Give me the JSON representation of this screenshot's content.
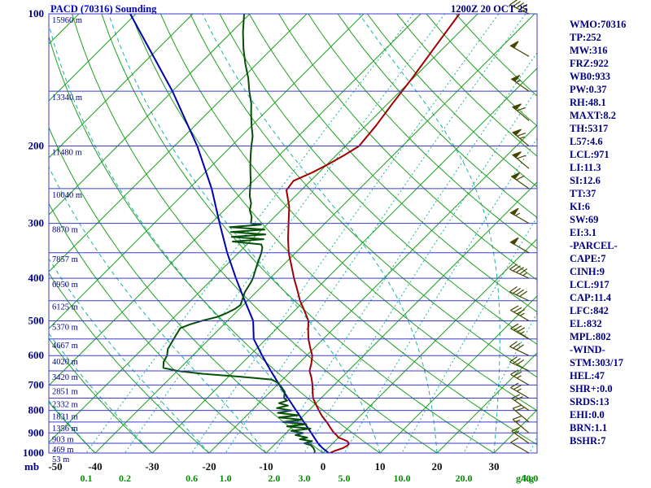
{
  "header": {
    "title": "PACD (70316) Sounding",
    "datetime": "1200Z 20 OCT 25"
  },
  "axes": {
    "pressure_unit": "mb",
    "mixing_unit": "g/kg",
    "pressure_ticks": [
      100,
      200,
      300,
      400,
      500,
      600,
      700,
      800,
      900,
      1000
    ],
    "temp_ticks": [
      -50,
      -40,
      -30,
      -20,
      -10,
      0,
      10,
      20,
      30
    ],
    "mixing_ratio_ticks": [
      0.1,
      0.2,
      0.6,
      1.0,
      2.0,
      3.0,
      5.0,
      10.0,
      20.0,
      40.0
    ]
  },
  "heights": [
    [
      100,
      "15960 m"
    ],
    [
      150,
      "13340 m"
    ],
    [
      200,
      "11480 m"
    ],
    [
      250,
      "10040 m"
    ],
    [
      300,
      "8870 m"
    ],
    [
      350,
      "7857 m"
    ],
    [
      400,
      "6950 m"
    ],
    [
      450,
      "6125 m"
    ],
    [
      500,
      "5370 m"
    ],
    [
      550,
      "4667 m"
    ],
    [
      600,
      "4020 m"
    ],
    [
      650,
      "3420 m"
    ],
    [
      700,
      "2851 m"
    ],
    [
      750,
      "2332 m"
    ],
    [
      800,
      "1831 m"
    ],
    [
      850,
      "1356 m"
    ],
    [
      900,
      "903 m"
    ],
    [
      950,
      "469 m"
    ],
    [
      1000,
      "53 m"
    ]
  ],
  "indices": [
    "WMO:70316",
    "TP:252",
    "MW:316",
    "FRZ:922",
    "WB0:933",
    "PW:0.37",
    "RH:48.1",
    "MAXT:8.2",
    "TH:5317",
    "L57:4.6",
    "LCL:971",
    "LI:11.3",
    "SI:12.6",
    "TT:37",
    "KI:6",
    "SW:69",
    "EI:3.1",
    "-PARCEL-",
    "CAPE:7",
    "CINH:9",
    "LCL:917",
    "CAP:11.4",
    "LFC:842",
    "EL:832",
    "MPL:802",
    "-WIND-",
    "STM:303/17",
    "HEL:47",
    "SHR+:0.0",
    "SRDS:13",
    "EHI:0.0",
    "BRN:1.1",
    "BSHR:7"
  ],
  "colors": {
    "pressure_line": "#3b3bd0",
    "isotherm": "#1fa01f",
    "mixing": "#19b3a6",
    "temperature": "#a00000",
    "dewpoint": "#064f06",
    "parcel": "#0000b0",
    "wind": "#454500",
    "label_navy": "#000085",
    "label_black": "#111111",
    "label_green": "#0a8a0a"
  },
  "chart_data": {
    "type": "skewt-log-p",
    "title": "PACD (70316) Sounding",
    "valid": "1200Z 20 OCT 25",
    "pressure_axis": {
      "unit": "mb",
      "range": [
        100,
        1000
      ],
      "scale": "log",
      "line_step_mb": 50
    },
    "temperature_axis": {
      "unit": "C",
      "skew_deg": 45,
      "isotherm_step_c": 10
    },
    "dry_adiabat_step_k": 10,
    "moist_adiabat_step_k": 10,
    "temperature": {
      "name": "temperature",
      "points": [
        [
          1000,
          1.2
        ],
        [
          990,
          1.6
        ],
        [
          975,
          2.6
        ],
        [
          960,
          3.0
        ],
        [
          950,
          2.8
        ],
        [
          940,
          2.2
        ],
        [
          930,
          1.0
        ],
        [
          922,
          0
        ],
        [
          910,
          -0.8
        ],
        [
          900,
          -1.6
        ],
        [
          875,
          -3.2
        ],
        [
          850,
          -4.8
        ],
        [
          825,
          -6.6
        ],
        [
          800,
          -8.2
        ],
        [
          775,
          -9.8
        ],
        [
          750,
          -11.4
        ],
        [
          725,
          -12.6
        ],
        [
          700,
          -13.8
        ],
        [
          675,
          -15.2
        ],
        [
          650,
          -16.8
        ],
        [
          625,
          -17.8
        ],
        [
          600,
          -19.0
        ],
        [
          575,
          -20.8
        ],
        [
          550,
          -22.6
        ],
        [
          525,
          -24.2
        ],
        [
          500,
          -25.8
        ],
        [
          475,
          -28.2
        ],
        [
          450,
          -30.8
        ],
        [
          425,
          -33.2
        ],
        [
          400,
          -35.8
        ],
        [
          375,
          -38.4
        ],
        [
          350,
          -41.2
        ],
        [
          325,
          -43.8
        ],
        [
          300,
          -46.4
        ],
        [
          275,
          -49.2
        ],
        [
          252,
          -52.6
        ],
        [
          240,
          -53.0
        ],
        [
          230,
          -51.2
        ],
        [
          220,
          -49.8
        ],
        [
          210,
          -48.6
        ],
        [
          200,
          -47.6
        ],
        [
          180,
          -48.2
        ],
        [
          160,
          -49.2
        ],
        [
          140,
          -50.2
        ],
        [
          120,
          -51.6
        ],
        [
          100,
          -53.2
        ]
      ]
    },
    "dewpoint": {
      "name": "dewpoint",
      "points": [
        [
          1000,
          -1.5
        ],
        [
          990,
          -1.8
        ],
        [
          975,
          -2.5
        ],
        [
          960,
          -3.5
        ],
        [
          950,
          -5.0
        ],
        [
          940,
          -4.0
        ],
        [
          930,
          -6.5
        ],
        [
          922,
          -5.5
        ],
        [
          910,
          -8.0
        ],
        [
          900,
          -7.0
        ],
        [
          890,
          -9.5
        ],
        [
          880,
          -6.5
        ],
        [
          870,
          -11.0
        ],
        [
          860,
          -8.0
        ],
        [
          850,
          -12.5
        ],
        [
          840,
          -9.5
        ],
        [
          830,
          -14.0
        ],
        [
          820,
          -11.0
        ],
        [
          810,
          -15.0
        ],
        [
          800,
          -13.0
        ],
        [
          790,
          -16.0
        ],
        [
          780,
          -14.5
        ],
        [
          770,
          -16.5
        ],
        [
          760,
          -15.5
        ],
        [
          750,
          -16.5
        ],
        [
          725,
          -17.5
        ],
        [
          700,
          -19.5
        ],
        [
          690,
          -20.5
        ],
        [
          680,
          -22.0
        ],
        [
          670,
          -28.0
        ],
        [
          660,
          -35.0
        ],
        [
          650,
          -40.0
        ],
        [
          640,
          -43.0
        ],
        [
          620,
          -44.0
        ],
        [
          600,
          -44.5
        ],
        [
          580,
          -45.5
        ],
        [
          560,
          -46.0
        ],
        [
          540,
          -46.5
        ],
        [
          520,
          -47.0
        ],
        [
          510,
          -46.0
        ],
        [
          500,
          -44.5
        ],
        [
          490,
          -42.5
        ],
        [
          480,
          -41.5
        ],
        [
          470,
          -40.8
        ],
        [
          460,
          -40.5
        ],
        [
          450,
          -41.0
        ],
        [
          440,
          -41.5
        ],
        [
          430,
          -42.0
        ],
        [
          420,
          -42.3
        ],
        [
          410,
          -42.6
        ],
        [
          400,
          -43.0
        ],
        [
          390,
          -43.6
        ],
        [
          380,
          -44.2
        ],
        [
          370,
          -44.8
        ],
        [
          360,
          -45.4
        ],
        [
          350,
          -46.0
        ],
        [
          340,
          -46.8
        ],
        [
          335,
          -47.5
        ],
        [
          330,
          -53.0
        ],
        [
          326,
          -48.0
        ],
        [
          322,
          -54.0
        ],
        [
          318,
          -48.5
        ],
        [
          314,
          -55.0
        ],
        [
          310,
          -49.5
        ],
        [
          306,
          -56.0
        ],
        [
          302,
          -51.0
        ],
        [
          300,
          -53.0
        ],
        [
          290,
          -54.0
        ],
        [
          280,
          -55.5
        ],
        [
          270,
          -56.5
        ],
        [
          260,
          -58.0
        ],
        [
          252,
          -59.0
        ],
        [
          240,
          -60.5
        ],
        [
          230,
          -62.0
        ],
        [
          220,
          -63.5
        ],
        [
          210,
          -65.0
        ],
        [
          200,
          -66.5
        ],
        [
          190,
          -68.0
        ],
        [
          180,
          -70.0
        ],
        [
          170,
          -72.0
        ],
        [
          160,
          -74.0
        ],
        [
          150,
          -76.5
        ],
        [
          140,
          -79.0
        ],
        [
          130,
          -82.0
        ],
        [
          120,
          -85.0
        ],
        [
          110,
          -88.0
        ],
        [
          100,
          -91.0
        ]
      ]
    },
    "parcel": {
      "name": "parcel-ascent",
      "points": [
        [
          1000,
          1.0
        ],
        [
          971,
          -1.2
        ],
        [
          950,
          -2.6
        ],
        [
          900,
          -5.6
        ],
        [
          850,
          -8.8
        ],
        [
          800,
          -12.2
        ],
        [
          750,
          -15.8
        ],
        [
          700,
          -19.6
        ],
        [
          650,
          -23.6
        ],
        [
          600,
          -27.8
        ],
        [
          550,
          -32.2
        ],
        [
          500,
          -35.5
        ],
        [
          450,
          -40.5
        ],
        [
          400,
          -46.0
        ],
        [
          350,
          -52.0
        ],
        [
          300,
          -58.5
        ],
        [
          250,
          -66.0
        ],
        [
          200,
          -76.0
        ],
        [
          150,
          -90.0
        ],
        [
          100,
          -111.0
        ]
      ]
    },
    "winds": [
      [
        1000,
        300,
        10
      ],
      [
        950,
        305,
        15
      ],
      [
        900,
        310,
        15
      ],
      [
        850,
        310,
        20
      ],
      [
        800,
        305,
        20
      ],
      [
        750,
        300,
        25
      ],
      [
        700,
        300,
        25
      ],
      [
        650,
        295,
        30
      ],
      [
        600,
        295,
        30
      ],
      [
        550,
        300,
        35
      ],
      [
        500,
        300,
        35
      ],
      [
        450,
        295,
        40
      ],
      [
        400,
        295,
        45
      ],
      [
        350,
        300,
        50
      ],
      [
        300,
        300,
        55
      ],
      [
        250,
        305,
        60
      ],
      [
        225,
        310,
        60
      ],
      [
        200,
        310,
        65
      ],
      [
        175,
        310,
        60
      ],
      [
        150,
        305,
        55
      ],
      [
        125,
        300,
        50
      ],
      [
        100,
        295,
        45
      ]
    ]
  }
}
